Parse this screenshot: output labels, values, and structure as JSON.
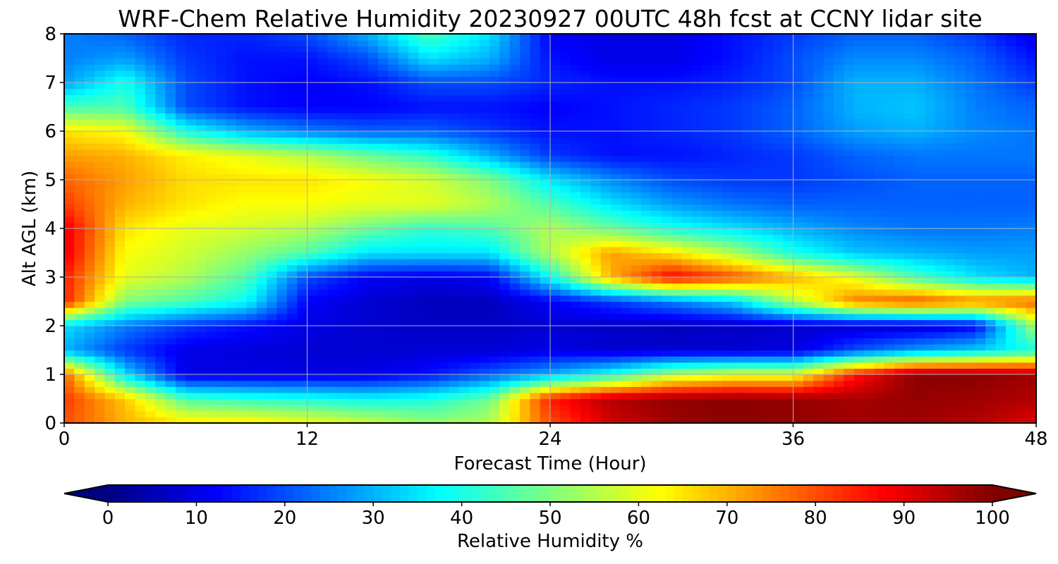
{
  "chart_data": {
    "type": "heatmap",
    "title": "WRF-Chem Relative Humidity 20230927 00UTC 48h fcst at CCNY lidar site",
    "xlabel": "Forecast Time (Hour)",
    "ylabel": "Alt AGL (km)",
    "xlim": [
      0,
      48
    ],
    "ylim": [
      0,
      8
    ],
    "x_ticks": [
      0,
      12,
      24,
      36,
      48
    ],
    "y_ticks": [
      0,
      1,
      2,
      3,
      4,
      5,
      6,
      7,
      8
    ],
    "grid": true,
    "colormap": "jet",
    "colorbar": {
      "label": "Relative Humidity %",
      "vmin": 0,
      "vmax": 100,
      "ticks": [
        0,
        10,
        20,
        30,
        40,
        50,
        60,
        70,
        80,
        90,
        100
      ],
      "extend": "both",
      "orientation": "horizontal"
    },
    "x": [
      0,
      3,
      6,
      9,
      12,
      15,
      18,
      21,
      24,
      27,
      30,
      33,
      36,
      39,
      42,
      45,
      48
    ],
    "y": [
      0,
      0.5,
      1,
      1.5,
      2,
      2.5,
      3,
      3.5,
      4,
      4.5,
      5,
      5.5,
      6,
      6.5,
      7,
      7.5,
      8
    ],
    "z": [
      [
        80,
        70,
        65,
        65,
        62,
        58,
        52,
        55,
        80,
        92,
        97,
        99,
        98,
        97,
        97,
        95,
        90
      ],
      [
        82,
        68,
        45,
        42,
        40,
        38,
        40,
        48,
        85,
        95,
        98,
        99,
        98,
        96,
        98,
        97,
        95
      ],
      [
        78,
        35,
        10,
        10,
        10,
        10,
        14,
        22,
        30,
        40,
        55,
        60,
        60,
        85,
        99,
        99,
        97
      ],
      [
        30,
        18,
        10,
        9,
        8,
        8,
        8,
        8,
        10,
        8,
        8,
        8,
        9,
        20,
        28,
        33,
        40
      ],
      [
        35,
        25,
        18,
        14,
        10,
        8,
        7,
        7,
        8,
        7,
        6,
        7,
        8,
        8,
        8,
        12,
        55
      ],
      [
        85,
        50,
        45,
        38,
        12,
        8,
        6,
        6,
        12,
        18,
        25,
        33,
        55,
        75,
        80,
        75,
        78
      ],
      [
        85,
        60,
        55,
        45,
        20,
        12,
        10,
        12,
        38,
        70,
        88,
        80,
        70,
        60,
        45,
        35,
        30
      ],
      [
        90,
        62,
        58,
        52,
        45,
        35,
        35,
        35,
        55,
        72,
        65,
        55,
        40,
        32,
        30,
        28,
        28
      ],
      [
        90,
        65,
        60,
        58,
        55,
        48,
        42,
        45,
        55,
        48,
        40,
        35,
        30,
        26,
        24,
        24,
        25
      ],
      [
        82,
        70,
        65,
        62,
        62,
        60,
        60,
        55,
        45,
        35,
        28,
        24,
        22,
        22,
        22,
        22,
        22
      ],
      [
        78,
        72,
        66,
        65,
        65,
        62,
        58,
        50,
        35,
        26,
        20,
        18,
        18,
        20,
        22,
        22,
        22
      ],
      [
        72,
        70,
        64,
        60,
        55,
        48,
        42,
        30,
        18,
        14,
        14,
        16,
        18,
        22,
        24,
        24,
        24
      ],
      [
        65,
        62,
        40,
        30,
        25,
        22,
        22,
        18,
        14,
        14,
        16,
        18,
        22,
        28,
        30,
        26,
        24
      ],
      [
        45,
        45,
        20,
        14,
        12,
        12,
        14,
        14,
        12,
        14,
        16,
        18,
        22,
        30,
        32,
        25,
        22
      ],
      [
        28,
        40,
        20,
        14,
        12,
        14,
        20,
        20,
        16,
        14,
        14,
        16,
        20,
        30,
        30,
        24,
        18
      ],
      [
        25,
        28,
        18,
        14,
        14,
        20,
        35,
        30,
        14,
        10,
        10,
        14,
        20,
        26,
        26,
        22,
        14
      ],
      [
        25,
        22,
        16,
        16,
        20,
        30,
        45,
        35,
        12,
        10,
        10,
        14,
        18,
        22,
        22,
        18,
        10
      ]
    ]
  }
}
